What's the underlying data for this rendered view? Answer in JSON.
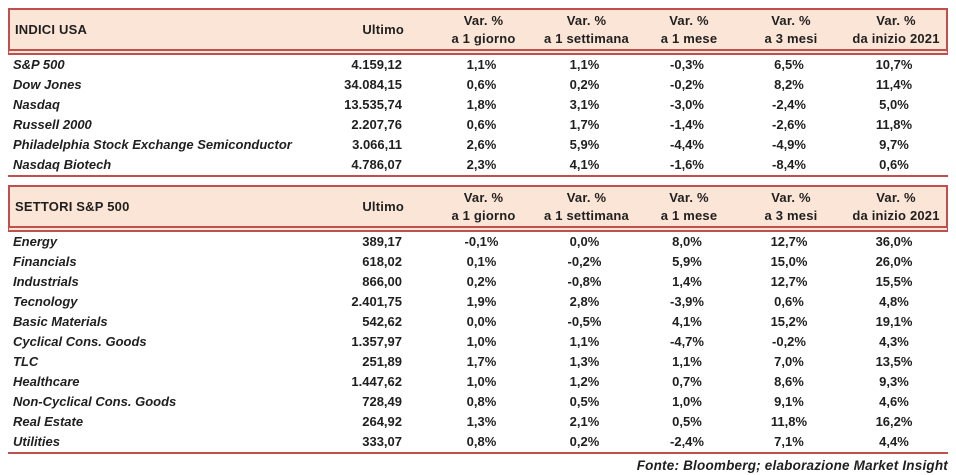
{
  "colors": {
    "accent_border": "#C0504D",
    "header_fill": "#FBE5D6",
    "text": "#1F1F1F"
  },
  "tables": [
    {
      "title": "INDICI USA",
      "columns": {
        "ultimo": "Ultimo",
        "var": [
          {
            "l1": "Var. %",
            "l2": "a 1 giorno"
          },
          {
            "l1": "Var. %",
            "l2": "a 1 settimana"
          },
          {
            "l1": "Var. %",
            "l2": "a 1 mese"
          },
          {
            "l1": "Var. %",
            "l2": "a 3 mesi"
          },
          {
            "l1": "Var. %",
            "l2": "da inizio 2021"
          }
        ]
      },
      "rows": [
        {
          "name": "S&P 500",
          "ultimo": "4.159,12",
          "vars": [
            "1,1%",
            "1,1%",
            "-0,3%",
            "6,5%",
            "10,7%"
          ]
        },
        {
          "name": "Dow Jones",
          "ultimo": "34.084,15",
          "vars": [
            "0,6%",
            "0,2%",
            "-0,2%",
            "8,2%",
            "11,4%"
          ]
        },
        {
          "name": "Nasdaq",
          "ultimo": "13.535,74",
          "vars": [
            "1,8%",
            "3,1%",
            "-3,0%",
            "-2,4%",
            "5,0%"
          ]
        },
        {
          "name": "Russell 2000",
          "ultimo": "2.207,76",
          "vars": [
            "0,6%",
            "1,7%",
            "-1,4%",
            "-2,6%",
            "11,8%"
          ]
        },
        {
          "name": "Philadelphia Stock Exchange Semiconductor",
          "ultimo": "3.066,11",
          "vars": [
            "2,6%",
            "5,9%",
            "-4,4%",
            "-4,9%",
            "9,7%"
          ]
        },
        {
          "name": "Nasdaq Biotech",
          "ultimo": "4.786,07",
          "vars": [
            "2,3%",
            "4,1%",
            "-1,6%",
            "-8,4%",
            "0,6%"
          ]
        }
      ]
    },
    {
      "title": "SETTORI S&P 500",
      "columns": {
        "ultimo": "Ultimo",
        "var": [
          {
            "l1": "Var. %",
            "l2": "a 1 giorno"
          },
          {
            "l1": "Var. %",
            "l2": "a 1 settimana"
          },
          {
            "l1": "Var. %",
            "l2": "a 1 mese"
          },
          {
            "l1": "Var. %",
            "l2": "a 3 mesi"
          },
          {
            "l1": "Var. %",
            "l2": "da inizio 2021"
          }
        ]
      },
      "rows": [
        {
          "name": "Energy",
          "ultimo": "389,17",
          "vars": [
            "-0,1%",
            "0,0%",
            "8,0%",
            "12,7%",
            "36,0%"
          ]
        },
        {
          "name": "Financials",
          "ultimo": "618,02",
          "vars": [
            "0,1%",
            "-0,2%",
            "5,9%",
            "15,0%",
            "26,0%"
          ]
        },
        {
          "name": "Industrials",
          "ultimo": "866,00",
          "vars": [
            "0,2%",
            "-0,8%",
            "1,4%",
            "12,7%",
            "15,5%"
          ]
        },
        {
          "name": "Tecnology",
          "ultimo": "2.401,75",
          "vars": [
            "1,9%",
            "2,8%",
            "-3,9%",
            "0,6%",
            "4,8%"
          ]
        },
        {
          "name": "Basic Materials",
          "ultimo": "542,62",
          "vars": [
            "0,0%",
            "-0,5%",
            "4,1%",
            "15,2%",
            "19,1%"
          ]
        },
        {
          "name": "Cyclical Cons. Goods",
          "ultimo": "1.357,97",
          "vars": [
            "1,0%",
            "1,1%",
            "-4,7%",
            "-0,2%",
            "4,3%"
          ]
        },
        {
          "name": "TLC",
          "ultimo": "251,89",
          "vars": [
            "1,7%",
            "1,3%",
            "1,1%",
            "7,0%",
            "13,5%"
          ]
        },
        {
          "name": "Healthcare",
          "ultimo": "1.447,62",
          "vars": [
            "1,0%",
            "1,2%",
            "0,7%",
            "8,6%",
            "9,3%"
          ]
        },
        {
          "name": "Non-Cyclical Cons. Goods",
          "ultimo": "728,49",
          "vars": [
            "0,8%",
            "0,5%",
            "1,0%",
            "9,1%",
            "4,6%"
          ]
        },
        {
          "name": "Real Estate",
          "ultimo": "264,92",
          "vars": [
            "1,3%",
            "2,1%",
            "0,5%",
            "11,8%",
            "16,2%"
          ]
        },
        {
          "name": "Utilities",
          "ultimo": "333,07",
          "vars": [
            "0,8%",
            "0,2%",
            "-2,4%",
            "7,1%",
            "4,4%"
          ]
        }
      ]
    }
  ],
  "source_note": "Fonte: Bloomberg; elaborazione Market Insight"
}
